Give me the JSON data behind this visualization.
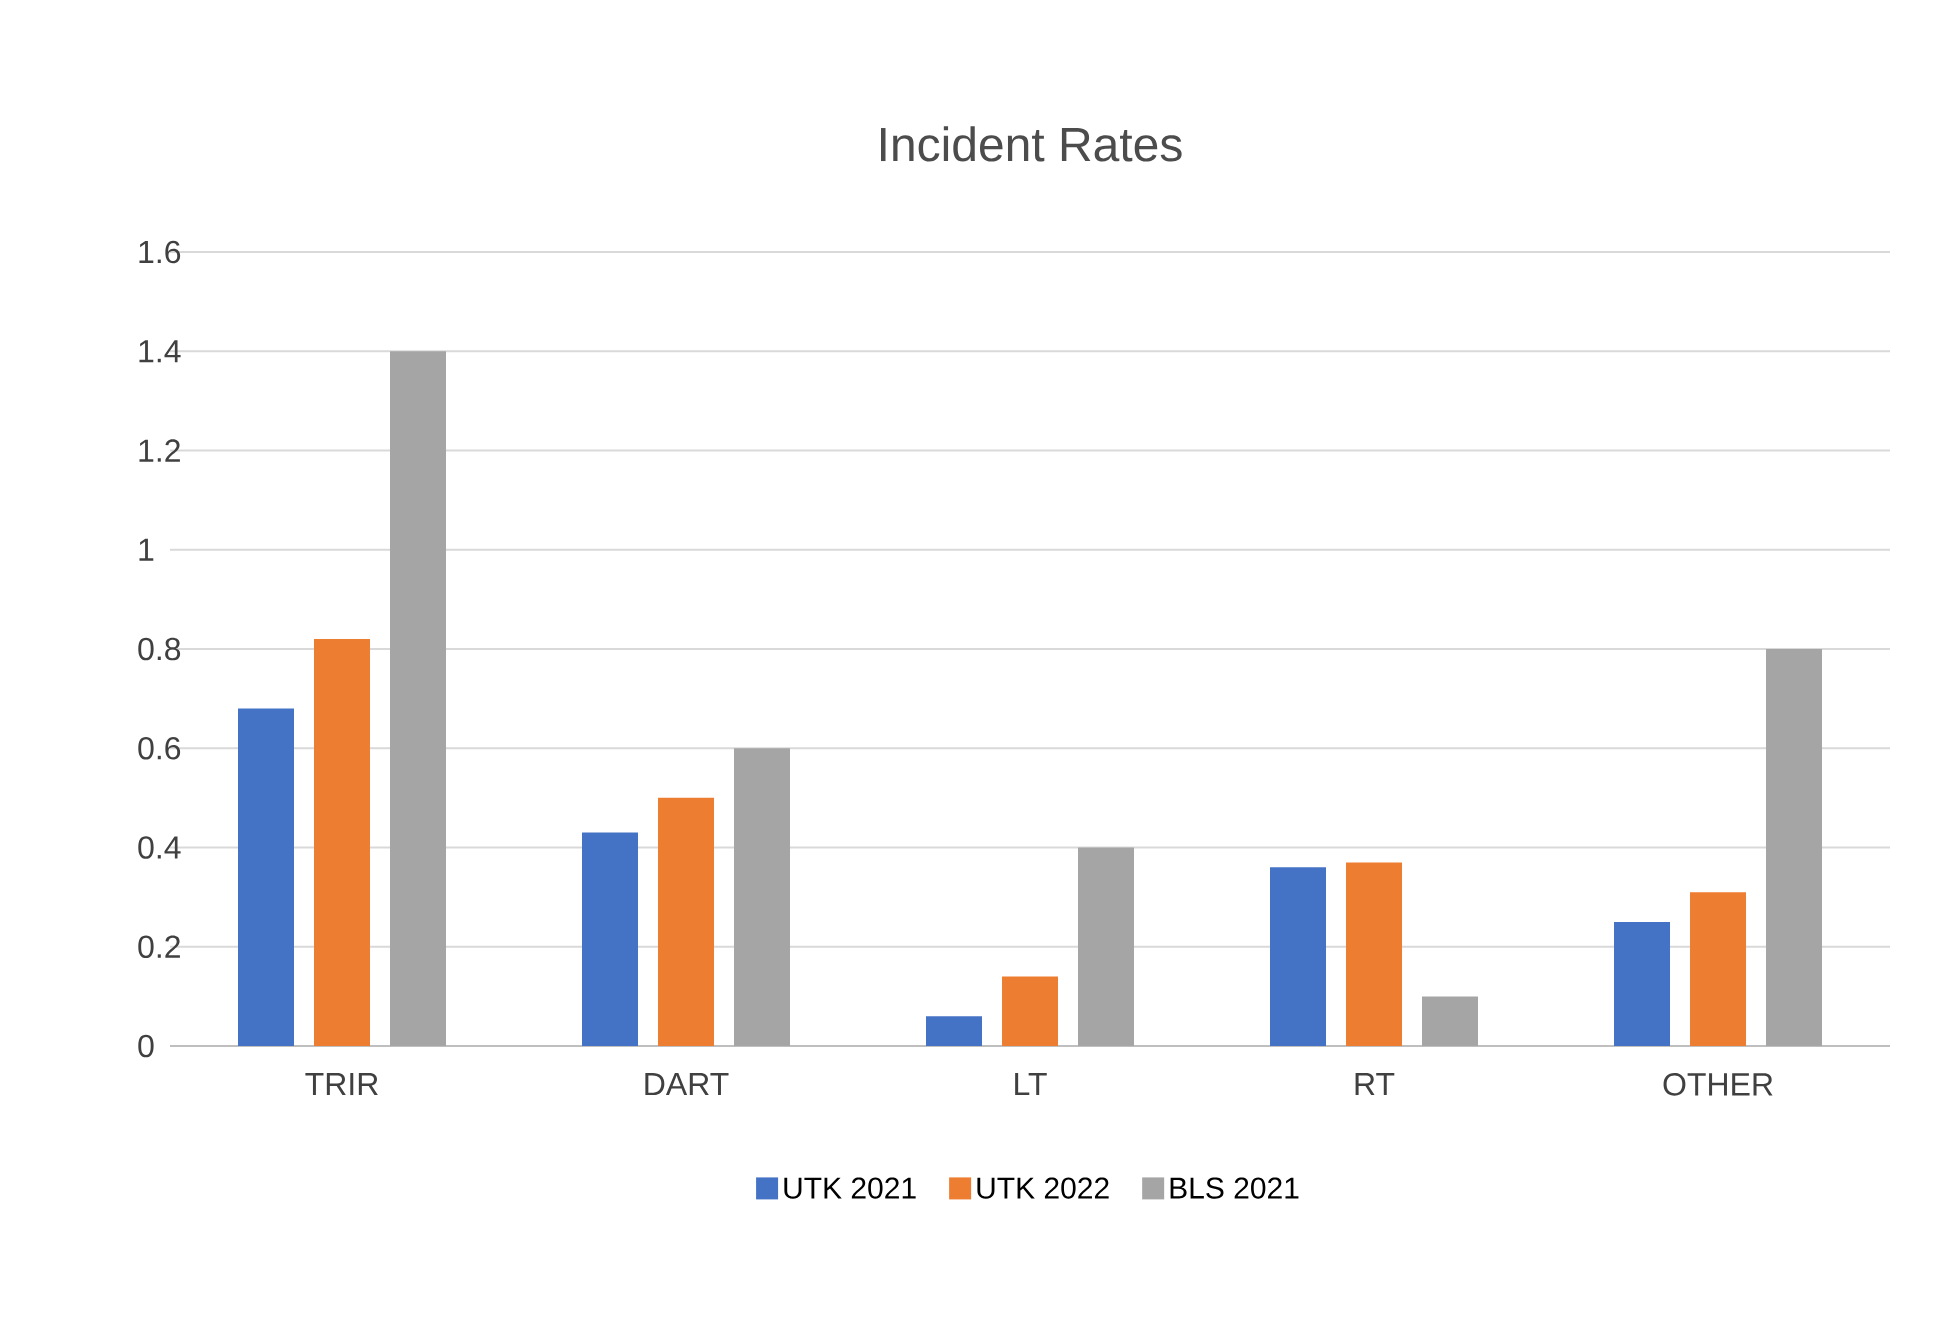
{
  "chart_data": {
    "type": "bar",
    "title": "Incident Rates",
    "categories": [
      "TRIR",
      "DART",
      "LT",
      "RT",
      "OTHER"
    ],
    "series": [
      {
        "name": "UTK 2021",
        "color": "#4472c4",
        "values": [
          0.68,
          0.43,
          0.06,
          0.36,
          0.25
        ]
      },
      {
        "name": "UTK 2022",
        "color": "#ed7d31",
        "values": [
          0.82,
          0.5,
          0.14,
          0.37,
          0.31
        ]
      },
      {
        "name": "BLS 2021",
        "color": "#a5a5a5",
        "values": [
          1.4,
          0.6,
          0.4,
          0.1,
          0.8
        ]
      }
    ],
    "ylim": [
      0,
      1.6
    ],
    "yticks": [
      0,
      0.2,
      0.4,
      0.6,
      0.8,
      1,
      1.2,
      1.4,
      1.6
    ],
    "grid": "y",
    "legend": "bottom"
  }
}
